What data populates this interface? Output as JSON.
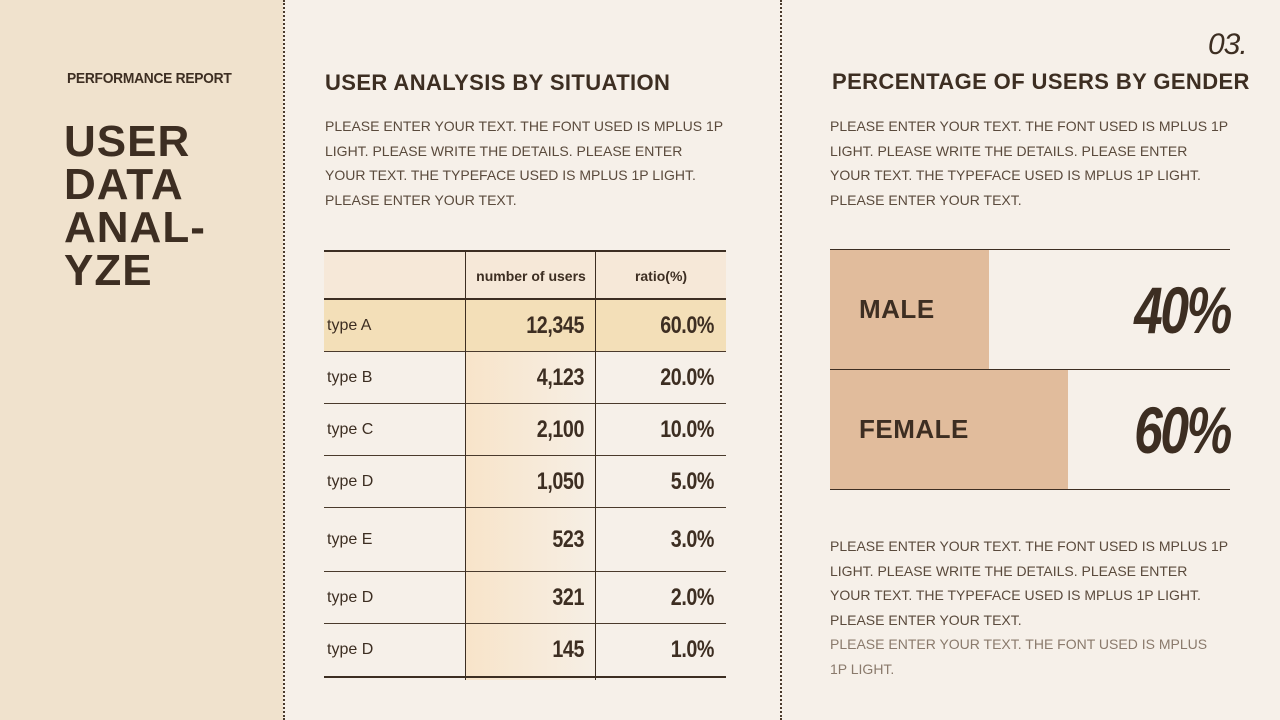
{
  "sidebar": {
    "report_label": "PERFORMANCE REPORT",
    "title_lines": [
      "USER",
      "DATA",
      "ANAL-",
      "YZE"
    ]
  },
  "page_number": "03.",
  "situation": {
    "heading": "USER ANALYSIS BY SITUATION",
    "text_lines": [
      "PLEASE ENTER YOUR TEXT. THE FONT USED IS MPLUS 1P",
      "LIGHT. PLEASE WRITE THE DETAILS. PLEASE ENTER",
      "YOUR TEXT. THE TYPEFACE USED IS MPLUS 1P LIGHT.",
      "PLEASE ENTER YOUR TEXT."
    ],
    "table": {
      "columns": [
        "",
        "number of users",
        "ratio(%)"
      ],
      "rows": [
        {
          "type": "type A",
          "users": "12,345",
          "ratio": "60.0%"
        },
        {
          "type": "type B",
          "users": "4,123",
          "ratio": "20.0%"
        },
        {
          "type": "type C",
          "users": "2,100",
          "ratio": "10.0%"
        },
        {
          "type": "type D",
          "users": "1,050",
          "ratio": "5.0%"
        },
        {
          "type": "type E",
          "users": "523",
          "ratio": "3.0%"
        },
        {
          "type": "type D",
          "users": "321",
          "ratio": "2.0%"
        },
        {
          "type": "type D",
          "users": "145",
          "ratio": "1.0%"
        }
      ]
    }
  },
  "gender": {
    "heading": "PERCENTAGE OF USERS BY GENDER",
    "text_lines": [
      "PLEASE ENTER YOUR TEXT. THE FONT USED IS MPLUS 1P",
      "LIGHT. PLEASE WRITE THE DETAILS. PLEASE ENTER",
      "YOUR TEXT. THE TYPEFACE USED IS MPLUS 1P LIGHT.",
      "PLEASE ENTER YOUR TEXT."
    ],
    "items": [
      {
        "label": "MALE",
        "percent": "40%",
        "value": 0.4
      },
      {
        "label": "FEMALE",
        "percent": "60%",
        "value": 0.6
      }
    ],
    "bar_color": "#e1bc9c",
    "footer_lines": [
      "PLEASE ENTER YOUR TEXT. THE FONT USED IS MPLUS 1P",
      "LIGHT. PLEASE WRITE THE DETAILS. PLEASE ENTER",
      "YOUR TEXT. THE TYPEFACE USED IS MPLUS 1P LIGHT.",
      "PLEASE ENTER YOUR TEXT."
    ],
    "footer_faint_lines": [
      "PLEASE ENTER YOUR TEXT. THE FONT USED IS MPLUS",
      "1P LIGHT."
    ]
  }
}
